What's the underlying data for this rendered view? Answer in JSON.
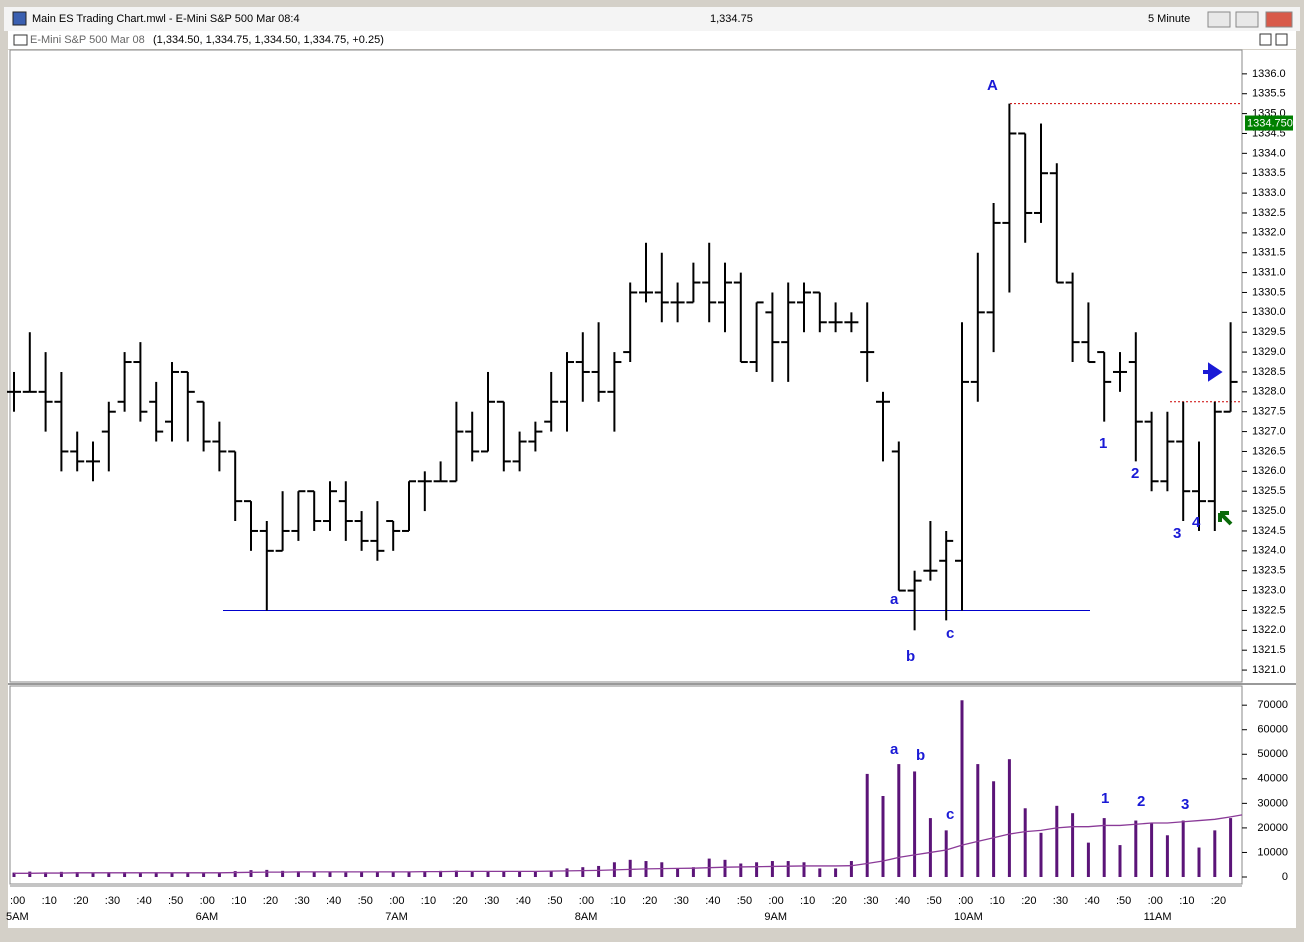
{
  "window": {
    "title": "Main ES Trading Chart.mwl - E-Mini S&P 500 Mar 08:4",
    "last": "1,334.75",
    "interval": "5 Minute"
  },
  "symbol": {
    "name": "E-Mini S&P 500 Mar 08",
    "quote": "(1,334.50, 1,334.75, 1,334.50, 1,334.75, +0.25)"
  },
  "chart_data": [
    {
      "type": "ohlc",
      "color": "#000000",
      "xtick_labels": [
        ":00",
        ":10",
        ":20",
        ":30",
        ":40",
        ":50",
        ":00",
        ":10",
        ":20",
        ":30",
        ":40",
        ":50",
        ":00",
        ":10",
        ":20",
        ":30",
        ":40",
        ":50",
        ":00",
        ":10",
        ":20",
        ":30",
        ":40",
        ":50",
        ":00",
        ":10",
        ":20",
        ":30",
        ":40",
        ":50",
        ":00",
        ":10",
        ":20",
        ":30",
        ":40",
        ":50",
        ":00",
        ":10",
        ":20"
      ],
      "hour_labels": [
        "5AM",
        "6AM",
        "7AM",
        "8AM",
        "9AM",
        "10AM",
        "11AM"
      ],
      "open": [
        1328,
        1328,
        1328,
        1327.75,
        1326.5,
        1326.25,
        1327,
        1327.75,
        1328.75,
        1327.75,
        1327.25,
        1328.5,
        1327.75,
        1326.75,
        1326.5,
        1325.25,
        1324.5,
        1324,
        1324.5,
        1325.5,
        1324.75,
        1325.25,
        1324.75,
        1324.25,
        1324.75,
        1324.5,
        1325.75,
        1325.75,
        1325.75,
        1327,
        1326.5,
        1327.75,
        1326.25,
        1326.75,
        1327.25,
        1327.75,
        1328.75,
        1328.5,
        1328,
        1329,
        1330.5,
        1330.5,
        1330.25,
        1330.25,
        1330.75,
        1330.25,
        1330.75,
        1328.75,
        1330,
        1329.25,
        1330.25,
        1330.5,
        1329.75,
        1329.75,
        1329,
        1327.75,
        1326.5,
        1323,
        1323.5,
        1323.75,
        1323.75,
        1328.25,
        1330,
        1332.25,
        1334.5,
        1332.5,
        1333.5,
        1330.75,
        1329.25,
        1329,
        1328.5,
        1328.75,
        1327.25,
        1325.75,
        1326.75,
        1325.5,
        1325.25,
        1327.5
      ],
      "high": [
        1328.5,
        1329.5,
        1329,
        1328.5,
        1327,
        1326.75,
        1327.75,
        1329,
        1329.25,
        1328.25,
        1328.75,
        1328.5,
        1327.75,
        1327.25,
        1326.5,
        1325.25,
        1324.75,
        1325.5,
        1325.5,
        1325.5,
        1325.75,
        1325.75,
        1325,
        1325.25,
        1324.75,
        1325.75,
        1326,
        1326.25,
        1327.75,
        1327.5,
        1328.5,
        1327.75,
        1327,
        1327.25,
        1328.5,
        1329,
        1329.5,
        1329.75,
        1329,
        1330.75,
        1331.75,
        1331.5,
        1330.75,
        1331.25,
        1331.75,
        1331.25,
        1331,
        1330.25,
        1330.5,
        1330.75,
        1330.75,
        1330.5,
        1330.25,
        1330,
        1330.25,
        1328,
        1326.75,
        1323.5,
        1324.75,
        1324.5,
        1329.75,
        1331.5,
        1332.75,
        1335.25,
        1334.5,
        1334.75,
        1333.75,
        1331,
        1330.25,
        1329,
        1329,
        1329.5,
        1327.5,
        1327.5,
        1327.75,
        1326.75,
        1327.75,
        1329.75
      ],
      "low": [
        1327.5,
        1328,
        1327,
        1326,
        1326,
        1325.75,
        1326,
        1327.5,
        1327.25,
        1326.75,
        1326.75,
        1326.75,
        1326.5,
        1326,
        1324.75,
        1324,
        1322.5,
        1324,
        1324.25,
        1324.5,
        1324.5,
        1324.25,
        1324,
        1323.75,
        1324,
        1324.5,
        1325,
        1325.75,
        1325.75,
        1326.25,
        1326.5,
        1326,
        1326,
        1326.5,
        1327,
        1327,
        1327.75,
        1327.75,
        1327,
        1328.75,
        1330.25,
        1329.75,
        1329.75,
        1330.25,
        1329.75,
        1329.5,
        1328.75,
        1328.5,
        1328.25,
        1328.25,
        1329.5,
        1329.5,
        1329.5,
        1329.5,
        1328.25,
        1326.25,
        1323,
        1322,
        1323.25,
        1322.25,
        1322.5,
        1327.75,
        1329,
        1330.5,
        1331.75,
        1332.25,
        1330.75,
        1328.75,
        1328.75,
        1327.25,
        1328,
        1326.25,
        1325.5,
        1325.5,
        1324.75,
        1324.5,
        1324.5,
        1327.5
      ],
      "close": [
        1328,
        1328,
        1327.75,
        1326.5,
        1326.25,
        1326.25,
        1327.5,
        1328.75,
        1327.5,
        1327,
        1328.5,
        1328,
        1326.75,
        1326.5,
        1325.25,
        1324.5,
        1324,
        1324.5,
        1325.5,
        1324.75,
        1325.5,
        1324.75,
        1324.25,
        1324,
        1324.5,
        1325.75,
        1325.75,
        1325.75,
        1327,
        1326.5,
        1327.75,
        1326.25,
        1326.75,
        1327,
        1327.75,
        1328.75,
        1328.5,
        1328,
        1328.75,
        1330.5,
        1330.5,
        1330.25,
        1330.25,
        1330.75,
        1330.25,
        1330.75,
        1328.75,
        1330.25,
        1329.25,
        1330.25,
        1330.5,
        1329.75,
        1329.75,
        1329.75,
        1329,
        1327.75,
        1323,
        1323.25,
        1323.5,
        1324.25,
        1328.25,
        1330,
        1332.25,
        1334.5,
        1332.5,
        1333.5,
        1330.75,
        1329.25,
        1328.75,
        1328.25,
        1328.5,
        1327.25,
        1325.75,
        1326.75,
        1325.5,
        1325.25,
        1327.5,
        1328.25
      ],
      "ylim": [
        1320.7,
        1336.6
      ],
      "yticks": [
        {
          "value": 1321,
          "label": "1321.0"
        },
        1321.5,
        {
          "value": 1322,
          "label": "1322.0"
        },
        1322.5,
        {
          "value": 1323,
          "label": "1323.0"
        },
        1323.5,
        {
          "value": 1324,
          "label": "1324.0"
        },
        1324.5,
        {
          "value": 1325,
          "label": "1325.0"
        },
        1325.5,
        {
          "value": 1326,
          "label": "1326.0"
        },
        1326.5,
        {
          "value": 1327,
          "label": "1327.0"
        },
        1327.5,
        {
          "value": 1328,
          "label": "1328.0"
        },
        1328.5,
        {
          "value": 1329,
          "label": "1329.0"
        },
        1329.5,
        {
          "value": 1330,
          "label": "1330.0"
        },
        1330.5,
        {
          "value": 1331,
          "label": "1331.0"
        },
        1331.5,
        {
          "value": 1332,
          "label": "1332.0"
        },
        1332.5,
        {
          "value": 1333,
          "label": "1333.0"
        },
        1333.5,
        {
          "value": 1334,
          "label": "1334.0"
        },
        1334.5,
        {
          "value": 1335,
          "label": "1335.0"
        },
        1335.5,
        {
          "value": 1336,
          "label": "1336.0"
        }
      ],
      "last_price": {
        "value": 1334.75,
        "label": "1334.750",
        "color": "#008000"
      },
      "levels": [
        {
          "value": 1322.5,
          "color": "#0000cc",
          "dashed": false
        },
        {
          "value": 1335.25,
          "color": "#cc0000",
          "dashed": true
        },
        {
          "value": 1327.75,
          "color": "#cc0000",
          "dashed": true
        }
      ],
      "annotations": [
        "A",
        "a",
        "b",
        "c",
        "1",
        "2",
        "3",
        "4"
      ]
    },
    {
      "type": "bar",
      "color": "#5b1478",
      "values": [
        1800,
        2200,
        1900,
        2100,
        2000,
        1800,
        1900,
        2000,
        1700,
        1900,
        1800,
        1900,
        1600,
        1800,
        2400,
        2800,
        2900,
        2500,
        2300,
        2100,
        2000,
        1800,
        1900,
        2000,
        1900,
        2100,
        2300,
        2500,
        2600,
        2200,
        2400,
        2300,
        2100,
        2200,
        2400,
        3500,
        4000,
        4500,
        6000,
        7000,
        6500,
        6000,
        3500,
        4000,
        7500,
        7000,
        5500,
        6000,
        6500,
        6500,
        6000,
        3500,
        3500,
        6500,
        42000,
        33000,
        46000,
        43000,
        24000,
        19000,
        72000,
        46000,
        39000,
        48000,
        28000,
        18000,
        29000,
        26000,
        14000,
        24000,
        13000,
        23000,
        22000,
        17000,
        23000,
        12000,
        19000,
        24000
      ],
      "average": {
        "color": "#8a3a98",
        "values": [
          1500,
          1500,
          1600,
          1600,
          1700,
          1700,
          1700,
          1700,
          1700,
          1700,
          1700,
          1700,
          1700,
          1700,
          1800,
          1900,
          2000,
          2000,
          2100,
          2100,
          2100,
          2100,
          2100,
          2100,
          2100,
          2100,
          2200,
          2200,
          2300,
          2300,
          2300,
          2300,
          2300,
          2300,
          2400,
          2500,
          2600,
          2700,
          2900,
          3100,
          3300,
          3400,
          3500,
          3600,
          3800,
          4000,
          4100,
          4200,
          4300,
          4400,
          4500,
          4500,
          4500,
          4600,
          5500,
          6500,
          8000,
          9000,
          10000,
          11000,
          13000,
          14500,
          16000,
          17500,
          18500,
          19000,
          20000,
          20500,
          20500,
          21000,
          21000,
          21500,
          22000,
          22000,
          22500,
          23000,
          23500,
          24500
        ]
      },
      "ylim": [
        0,
        77000
      ],
      "yticks": [
        0,
        10000,
        20000,
        30000,
        40000,
        50000,
        60000,
        70000
      ],
      "annotations": [
        "a",
        "b",
        "c",
        "1",
        "2",
        "3"
      ]
    }
  ]
}
